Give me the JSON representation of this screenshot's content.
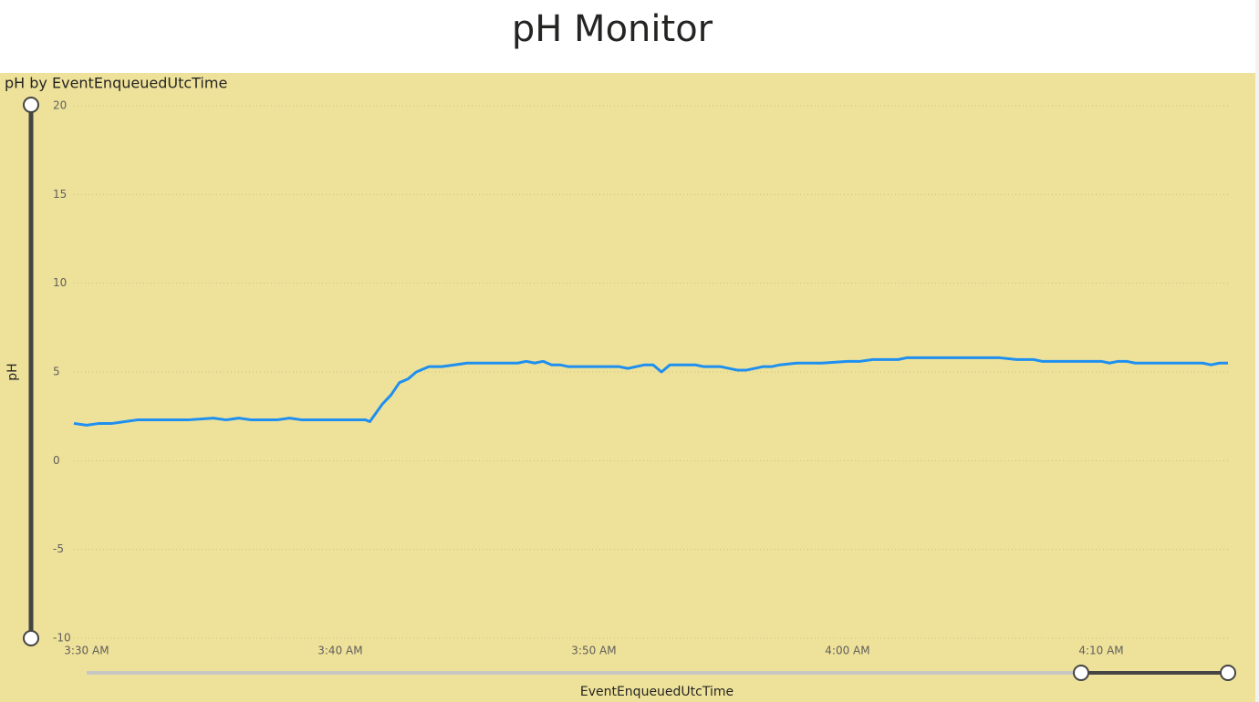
{
  "chart_data": {
    "type": "line",
    "title": "pH Monitor",
    "subtitle": "pH by EventEnqueuedUtcTime",
    "x_label": "EventEnqueuedUtcTime",
    "y_label": "pH",
    "xlim": [
      "3:29:30 AM",
      "4:15:00 AM"
    ],
    "xticks": [
      "3:30 AM",
      "3:40 AM",
      "3:50 AM",
      "4:00 AM",
      "4:10 AM"
    ],
    "ylim": [
      -10,
      20
    ],
    "yticks": [
      -10,
      -5,
      0,
      5,
      10,
      15,
      20
    ],
    "grid": true,
    "series": [
      {
        "name": "pH",
        "color": "#1f8ff0",
        "x": [
          "3:29:30 AM",
          "3:30:00 AM",
          "3:30:30 AM",
          "3:31:00 AM",
          "3:31:30 AM",
          "3:32:00 AM",
          "3:33:00 AM",
          "3:34:00 AM",
          "3:35:00 AM",
          "3:35:30 AM",
          "3:36:00 AM",
          "3:36:30 AM",
          "3:37:30 AM",
          "3:38:00 AM",
          "3:38:30 AM",
          "3:40:00 AM",
          "3:41:00 AM",
          "3:41:10 AM",
          "3:41:40 AM",
          "3:42:00 AM",
          "3:42:20 AM",
          "3:42:40 AM",
          "3:43:00 AM",
          "3:43:30 AM",
          "3:44:00 AM",
          "3:44:30 AM",
          "3:45:00 AM",
          "3:46:00 AM",
          "3:47:00 AM",
          "3:47:20 AM",
          "3:47:40 AM",
          "3:48:00 AM",
          "3:48:20 AM",
          "3:48:40 AM",
          "3:49:00 AM",
          "3:50:00 AM",
          "3:51:00 AM",
          "3:51:20 AM",
          "3:51:40 AM",
          "3:52:00 AM",
          "3:52:20 AM",
          "3:52:40 AM",
          "3:53:00 AM",
          "3:54:00 AM",
          "3:54:20 AM",
          "3:55:00 AM",
          "3:55:40 AM",
          "3:56:00 AM",
          "3:56:40 AM",
          "3:57:00 AM",
          "3:57:20 AM",
          "3:58:00 AM",
          "3:59:00 AM",
          "4:00:00 AM",
          "4:00:30 AM",
          "4:01:00 AM",
          "4:02:00 AM",
          "4:02:20 AM",
          "4:03:00 AM",
          "4:05:00 AM",
          "4:06:00 AM",
          "4:06:40 AM",
          "4:07:20 AM",
          "4:07:40 AM",
          "4:09:00 AM",
          "4:10:00 AM",
          "4:10:20 AM",
          "4:10:40 AM",
          "4:11:00 AM",
          "4:11:20 AM",
          "4:13:00 AM",
          "4:14:00 AM",
          "4:14:20 AM",
          "4:14:40 AM",
          "4:15:00 AM"
        ],
        "values": [
          2.1,
          2.0,
          2.1,
          2.1,
          2.2,
          2.3,
          2.3,
          2.3,
          2.4,
          2.3,
          2.4,
          2.3,
          2.3,
          2.4,
          2.3,
          2.3,
          2.3,
          2.2,
          3.2,
          3.7,
          4.4,
          4.6,
          5.0,
          5.3,
          5.3,
          5.4,
          5.5,
          5.5,
          5.5,
          5.6,
          5.5,
          5.6,
          5.4,
          5.4,
          5.3,
          5.3,
          5.3,
          5.2,
          5.3,
          5.4,
          5.4,
          5.0,
          5.4,
          5.4,
          5.3,
          5.3,
          5.1,
          5.1,
          5.3,
          5.3,
          5.4,
          5.5,
          5.5,
          5.6,
          5.6,
          5.7,
          5.7,
          5.8,
          5.8,
          5.8,
          5.8,
          5.7,
          5.7,
          5.6,
          5.6,
          5.6,
          5.5,
          5.6,
          5.6,
          5.5,
          5.5,
          5.5,
          5.4,
          5.5,
          5.5
        ]
      }
    ]
  }
}
